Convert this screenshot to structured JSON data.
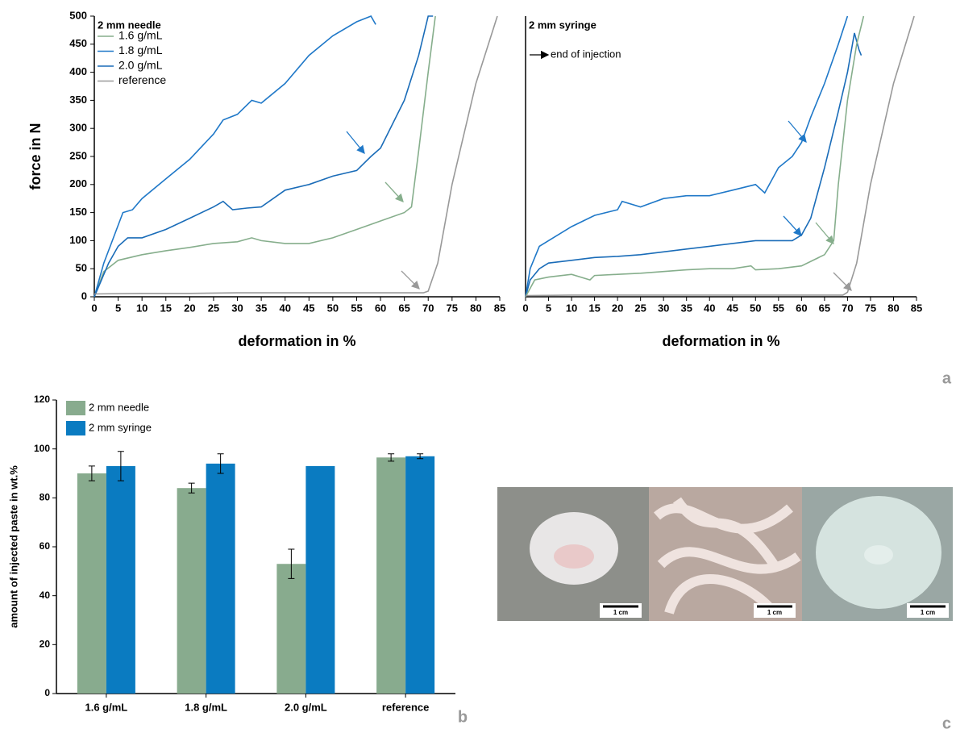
{
  "chart_data": [
    {
      "type": "line",
      "title": "2 mm needle",
      "xlabel": "deformation in %",
      "ylabel": "force in N",
      "xlim": [
        0,
        85
      ],
      "xticks": [
        0,
        5,
        10,
        15,
        20,
        25,
        30,
        35,
        40,
        45,
        50,
        55,
        60,
        65,
        70,
        75,
        80,
        85
      ],
      "ylim": [
        0,
        500
      ],
      "yticks": [
        0,
        50,
        100,
        150,
        200,
        250,
        300,
        350,
        400,
        450,
        500
      ],
      "legend": "upper left",
      "series": [
        {
          "name": "1.6 g/mL",
          "color": "#86ae8c",
          "x": [
            0,
            2,
            5,
            10,
            15,
            20,
            25,
            30,
            33,
            35,
            40,
            45,
            50,
            55,
            60,
            65,
            66.5,
            68,
            70,
            71.5
          ],
          "values": [
            0,
            45,
            65,
            75,
            82,
            88,
            95,
            98,
            105,
            100,
            95,
            95,
            105,
            120,
            135,
            150,
            160,
            260,
            400,
            500
          ]
        },
        {
          "name": "1.8 g/mL",
          "color": "#1f78c8",
          "x": [
            0,
            2,
            4,
            6,
            8,
            10,
            15,
            20,
            25,
            27,
            30,
            33,
            35,
            40,
            45,
            50,
            55,
            58,
            59
          ],
          "values": [
            0,
            60,
            105,
            150,
            155,
            175,
            210,
            245,
            290,
            315,
            325,
            350,
            345,
            380,
            430,
            465,
            490,
            500,
            485
          ]
        },
        {
          "name": "2.0 g/mL",
          "color": "#1a6cb8",
          "x": [
            0,
            3,
            5,
            7,
            10,
            15,
            20,
            25,
            27,
            29,
            32,
            35,
            40,
            45,
            50,
            55,
            58,
            60,
            65,
            68,
            70,
            71
          ],
          "values": [
            0,
            60,
            90,
            105,
            105,
            120,
            140,
            160,
            170,
            155,
            158,
            160,
            190,
            200,
            215,
            225,
            250,
            265,
            350,
            430,
            500,
            500
          ]
        },
        {
          "name": "reference",
          "color": "#999999",
          "x": [
            0,
            10,
            20,
            30,
            40,
            50,
            60,
            65,
            69,
            70,
            72,
            75,
            80,
            84.5
          ],
          "values": [
            5,
            6,
            6,
            7,
            7,
            7,
            7,
            7,
            7,
            10,
            60,
            200,
            380,
            500
          ]
        }
      ]
    },
    {
      "type": "line",
      "title": "2 mm syringe",
      "annotation": "end of injection",
      "xlabel": "deformation in %",
      "xlim": [
        0,
        85
      ],
      "xticks": [
        0,
        5,
        10,
        15,
        20,
        25,
        30,
        35,
        40,
        45,
        50,
        55,
        60,
        65,
        70,
        75,
        80,
        85
      ],
      "ylim": [
        0,
        500
      ],
      "series": [
        {
          "color": "#1f78c8",
          "x": [
            0,
            1,
            3,
            5,
            10,
            15,
            20,
            21,
            25,
            30,
            35,
            40,
            45,
            50,
            52,
            55,
            58,
            60,
            62,
            65,
            68,
            70
          ],
          "values": [
            0,
            50,
            90,
            100,
            125,
            145,
            155,
            170,
            160,
            175,
            180,
            180,
            190,
            200,
            185,
            230,
            250,
            275,
            320,
            380,
            450,
            500
          ]
        },
        {
          "color": "#1a6cb8",
          "x": [
            0,
            1,
            3,
            5,
            10,
            15,
            20,
            25,
            30,
            35,
            40,
            45,
            50,
            55,
            58,
            59,
            60,
            62,
            65,
            68,
            70,
            71.5,
            72.5,
            73
          ],
          "values": [
            0,
            30,
            50,
            60,
            65,
            70,
            72,
            75,
            80,
            85,
            90,
            95,
            100,
            100,
            100,
            105,
            110,
            140,
            230,
            330,
            400,
            470,
            440,
            430
          ]
        },
        {
          "color": "#86ae8c",
          "x": [
            0,
            2,
            5,
            10,
            14,
            15,
            20,
            25,
            30,
            35,
            40,
            45,
            49,
            50,
            55,
            60,
            65,
            67,
            68,
            70,
            72,
            73.5
          ],
          "values": [
            0,
            30,
            35,
            40,
            30,
            38,
            40,
            42,
            45,
            48,
            50,
            50,
            55,
            48,
            50,
            55,
            75,
            100,
            200,
            350,
            450,
            500
          ]
        },
        {
          "color": "#999999",
          "x": [
            0,
            10,
            20,
            30,
            40,
            50,
            60,
            65,
            69,
            70,
            72,
            75,
            80,
            84.5
          ],
          "values": [
            2,
            3,
            3,
            3,
            3,
            3,
            3,
            3,
            3,
            8,
            60,
            200,
            380,
            500
          ]
        }
      ]
    },
    {
      "type": "bar",
      "ylabel": "amount of injected paste in wt.%",
      "categories": [
        "1.6 g/mL",
        "1.8 g/mL",
        "2.0 g/mL",
        "reference"
      ],
      "ylim": [
        0,
        120
      ],
      "yticks": [
        0,
        20,
        40,
        60,
        80,
        100,
        120
      ],
      "legend": "upper left",
      "series": [
        {
          "name": "2 mm needle",
          "color": "#88ab8e",
          "values": [
            90,
            84,
            53,
            96.5
          ],
          "errors": [
            3,
            2,
            6,
            1.5
          ]
        },
        {
          "name": "2 mm syringe",
          "color": "#0a7bc1",
          "values": [
            93,
            94,
            93,
            97
          ],
          "errors": [
            6,
            4,
            null,
            1
          ]
        }
      ]
    }
  ],
  "panel_labels": [
    "a",
    "b",
    "c"
  ],
  "photo_scale_labels": [
    "1 cm",
    "1 cm",
    "1 cm"
  ]
}
